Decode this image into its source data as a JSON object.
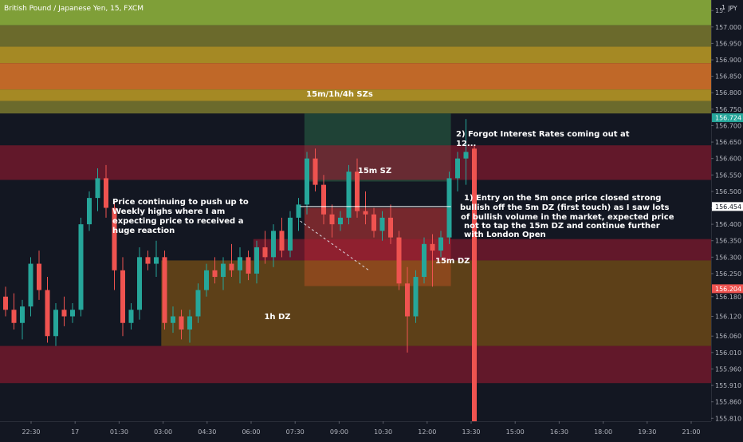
{
  "header": {
    "symbol": "British Pound / Japanese Yen, 15, FXCM",
    "currency": "JPY"
  },
  "chart_data": {
    "type": "candlestick",
    "x_ticks": [
      {
        "label": "22:30",
        "i": 0
      },
      {
        "label": "17",
        "i": 6
      },
      {
        "label": "01:30",
        "i": 12
      },
      {
        "label": "03:00",
        "i": 18
      },
      {
        "label": "04:30",
        "i": 24
      },
      {
        "label": "06:00",
        "i": 30
      },
      {
        "label": "07:30",
        "i": 36
      },
      {
        "label": "09:00",
        "i": 42
      },
      {
        "label": "10:30",
        "i": 48
      },
      {
        "label": "12:00",
        "i": 54
      },
      {
        "label": "13:30",
        "i": 60
      },
      {
        "label": "15:00",
        "i": 66
      },
      {
        "label": "16:30",
        "i": 72
      },
      {
        "label": "18:00",
        "i": 78
      },
      {
        "label": "19:30",
        "i": 84
      },
      {
        "label": "21:00",
        "i": 90
      }
    ],
    "y_ticks": [
      157.05,
      157.0,
      156.95,
      156.9,
      156.85,
      156.8,
      156.75,
      156.7,
      156.65,
      156.6,
      156.55,
      156.5,
      156.45,
      156.4,
      156.35,
      156.3,
      156.25,
      156.18,
      156.12,
      156.06,
      156.01,
      155.96,
      155.91,
      155.86,
      155.81
    ],
    "y_tick_top_partial": "15",
    "ylim": [
      155.801,
      157.082
    ],
    "price_labels": [
      {
        "value": 156.724,
        "text": "156.724",
        "color": "#26a69a"
      },
      {
        "value": 156.454,
        "text": "156.454",
        "color": "#ffffff"
      },
      {
        "value": 156.204,
        "text": "156.204",
        "color": "#ef5350"
      }
    ],
    "zones": [
      {
        "name": "band-top-1",
        "x0": -4,
        "x1": 999,
        "top": 157.082,
        "bottom": 157.005,
        "color": "#7f9f38"
      },
      {
        "name": "band-top-2",
        "x0": -4,
        "x1": 999,
        "top": 157.005,
        "bottom": 156.94,
        "color": "#6b6a2c"
      },
      {
        "name": "band-top-3",
        "x0": -4,
        "x1": 999,
        "top": 156.94,
        "bottom": 156.89,
        "color": "#a58924"
      },
      {
        "name": "band-top-4",
        "x0": -4,
        "x1": 999,
        "top": 156.89,
        "bottom": 156.81,
        "color": "#c06828"
      },
      {
        "name": "band-top-5",
        "x0": -4,
        "x1": 999,
        "top": 156.81,
        "bottom": 156.775,
        "color": "#a58924"
      },
      {
        "name": "band-top-6",
        "x0": -4,
        "x1": 999,
        "top": 156.775,
        "bottom": 156.737,
        "color": "#6b6a2c"
      },
      {
        "name": "15m-sz-box",
        "x0": 35.7,
        "x1": 53.2,
        "top": 156.737,
        "bottom": 156.53,
        "color": "rgba(46,120,80,0.45)"
      },
      {
        "name": "red-upper-zone",
        "x0": -4,
        "x1": 999,
        "top": 156.64,
        "bottom": 156.535,
        "color": "rgba(164,26,50,0.55)"
      },
      {
        "name": "entry-dz-box",
        "x0": 35.7,
        "x1": 53.2,
        "top": 156.45,
        "bottom": 156.212,
        "color": "rgba(200,54,54,0.55)"
      },
      {
        "name": "15m-dz-zone",
        "x0": 29.6,
        "x1": 999,
        "top": 156.355,
        "bottom": 156.29,
        "color": "rgba(164,26,50,0.55)"
      },
      {
        "name": "1h-dz-zone",
        "x0": 18.6,
        "x1": 999,
        "top": 156.29,
        "bottom": 156.03,
        "color": "rgba(154,98,16,0.55)"
      },
      {
        "name": "red-lower-zone",
        "x0": -4,
        "x1": 999,
        "top": 156.03,
        "bottom": 155.917,
        "color": "rgba(164,26,50,0.55)"
      }
    ],
    "candles": [
      {
        "o": 156.18,
        "h": 156.21,
        "l": 156.12,
        "c": 156.14
      },
      {
        "o": 156.14,
        "h": 156.19,
        "l": 156.08,
        "c": 156.1
      },
      {
        "o": 156.1,
        "h": 156.17,
        "l": 156.05,
        "c": 156.15
      },
      {
        "o": 156.15,
        "h": 156.3,
        "l": 156.12,
        "c": 156.28
      },
      {
        "o": 156.28,
        "h": 156.32,
        "l": 156.17,
        "c": 156.2
      },
      {
        "o": 156.2,
        "h": 156.24,
        "l": 156.04,
        "c": 156.06
      },
      {
        "o": 156.06,
        "h": 156.16,
        "l": 156.03,
        "c": 156.14
      },
      {
        "o": 156.14,
        "h": 156.18,
        "l": 156.09,
        "c": 156.12
      },
      {
        "o": 156.12,
        "h": 156.16,
        "l": 156.1,
        "c": 156.14
      },
      {
        "o": 156.14,
        "h": 156.42,
        "l": 156.12,
        "c": 156.4
      },
      {
        "o": 156.4,
        "h": 156.5,
        "l": 156.38,
        "c": 156.48
      },
      {
        "o": 156.48,
        "h": 156.57,
        "l": 156.44,
        "c": 156.54
      },
      {
        "o": 156.54,
        "h": 156.58,
        "l": 156.42,
        "c": 156.45
      },
      {
        "o": 156.45,
        "h": 156.47,
        "l": 156.2,
        "c": 156.26
      },
      {
        "o": 156.26,
        "h": 156.3,
        "l": 156.06,
        "c": 156.1
      },
      {
        "o": 156.1,
        "h": 156.16,
        "l": 156.08,
        "c": 156.14
      },
      {
        "o": 156.14,
        "h": 156.33,
        "l": 156.11,
        "c": 156.3
      },
      {
        "o": 156.3,
        "h": 156.32,
        "l": 156.26,
        "c": 156.28
      },
      {
        "o": 156.28,
        "h": 156.35,
        "l": 156.24,
        "c": 156.3
      },
      {
        "o": 156.3,
        "h": 156.32,
        "l": 156.08,
        "c": 156.1
      },
      {
        "o": 156.1,
        "h": 156.15,
        "l": 156.07,
        "c": 156.12
      },
      {
        "o": 156.12,
        "h": 156.14,
        "l": 156.05,
        "c": 156.08
      },
      {
        "o": 156.08,
        "h": 156.14,
        "l": 156.04,
        "c": 156.12
      },
      {
        "o": 156.12,
        "h": 156.22,
        "l": 156.1,
        "c": 156.2
      },
      {
        "o": 156.2,
        "h": 156.28,
        "l": 156.18,
        "c": 156.26
      },
      {
        "o": 156.26,
        "h": 156.3,
        "l": 156.22,
        "c": 156.24
      },
      {
        "o": 156.24,
        "h": 156.3,
        "l": 156.2,
        "c": 156.28
      },
      {
        "o": 156.28,
        "h": 156.34,
        "l": 156.24,
        "c": 156.26
      },
      {
        "o": 156.26,
        "h": 156.33,
        "l": 156.22,
        "c": 156.3
      },
      {
        "o": 156.3,
        "h": 156.32,
        "l": 156.23,
        "c": 156.25
      },
      {
        "o": 156.25,
        "h": 156.35,
        "l": 156.22,
        "c": 156.33
      },
      {
        "o": 156.33,
        "h": 156.38,
        "l": 156.28,
        "c": 156.3
      },
      {
        "o": 156.3,
        "h": 156.4,
        "l": 156.27,
        "c": 156.38
      },
      {
        "o": 156.38,
        "h": 156.42,
        "l": 156.3,
        "c": 156.32
      },
      {
        "o": 156.32,
        "h": 156.44,
        "l": 156.3,
        "c": 156.42
      },
      {
        "o": 156.42,
        "h": 156.48,
        "l": 156.38,
        "c": 156.46
      },
      {
        "o": 156.46,
        "h": 156.62,
        "l": 156.43,
        "c": 156.6
      },
      {
        "o": 156.6,
        "h": 156.63,
        "l": 156.5,
        "c": 156.52
      },
      {
        "o": 156.52,
        "h": 156.55,
        "l": 156.4,
        "c": 156.43
      },
      {
        "o": 156.43,
        "h": 156.46,
        "l": 156.36,
        "c": 156.4
      },
      {
        "o": 156.4,
        "h": 156.44,
        "l": 156.38,
        "c": 156.42
      },
      {
        "o": 156.42,
        "h": 156.58,
        "l": 156.4,
        "c": 156.56
      },
      {
        "o": 156.56,
        "h": 156.6,
        "l": 156.42,
        "c": 156.44
      },
      {
        "o": 156.44,
        "h": 156.5,
        "l": 156.4,
        "c": 156.43
      },
      {
        "o": 156.43,
        "h": 156.45,
        "l": 156.36,
        "c": 156.38
      },
      {
        "o": 156.38,
        "h": 156.44,
        "l": 156.35,
        "c": 156.42
      },
      {
        "o": 156.42,
        "h": 156.46,
        "l": 156.34,
        "c": 156.36
      },
      {
        "o": 156.36,
        "h": 156.38,
        "l": 156.2,
        "c": 156.22
      },
      {
        "o": 156.22,
        "h": 156.27,
        "l": 156.01,
        "c": 156.12
      },
      {
        "o": 156.12,
        "h": 156.26,
        "l": 156.1,
        "c": 156.24
      },
      {
        "o": 156.24,
        "h": 156.36,
        "l": 156.22,
        "c": 156.34
      },
      {
        "o": 156.34,
        "h": 156.37,
        "l": 156.21,
        "c": 156.32
      },
      {
        "o": 156.32,
        "h": 156.38,
        "l": 156.3,
        "c": 156.36
      },
      {
        "o": 156.36,
        "h": 156.56,
        "l": 156.34,
        "c": 156.54
      },
      {
        "o": 156.54,
        "h": 156.62,
        "l": 156.5,
        "c": 156.6
      },
      {
        "o": 156.6,
        "h": 156.72,
        "l": 156.52,
        "c": 156.62
      },
      {
        "o": 156.63,
        "h": 156.64,
        "l": 155.79,
        "c": 155.79
      }
    ],
    "trend_line": {
      "x0": 35.2,
      "y0": 156.41,
      "x1": 43.4,
      "y1": 156.26
    },
    "h_line": {
      "x0": 35.2,
      "x1": 53.2,
      "value": 156.454
    },
    "annotations": [
      {
        "name": "annotation-htf-sz",
        "text": "15m/1h/4h SZs"
      },
      {
        "name": "annotation-15m-sz",
        "text": "15m SZ"
      },
      {
        "name": "annotation-interest-rates",
        "lines": [
          "2) Forgot Interest Rates coming out at",
          "12..."
        ]
      },
      {
        "name": "annotation-weekly-highs",
        "lines": [
          "Price continuing to push up to",
          "Weekly highs where I am",
          "expecting price to received a",
          "huge reaction"
        ]
      },
      {
        "name": "annotation-entry",
        "lines": [
          "1) Entry on the 5m once price closed strong",
          "bullish off the 5m DZ (first touch) as I saw lots",
          "of bullish volume in the market, expected price",
          "not to tap the 15m DZ and continue further",
          "with London Open"
        ]
      },
      {
        "name": "annotation-15m-dz",
        "text": "15m DZ"
      },
      {
        "name": "annotation-1h-dz",
        "text": "1h DZ"
      }
    ],
    "colors": {
      "up": "#26a69a",
      "down": "#ef5350",
      "background": "#131722",
      "axis_text": "#b2b5be"
    }
  }
}
